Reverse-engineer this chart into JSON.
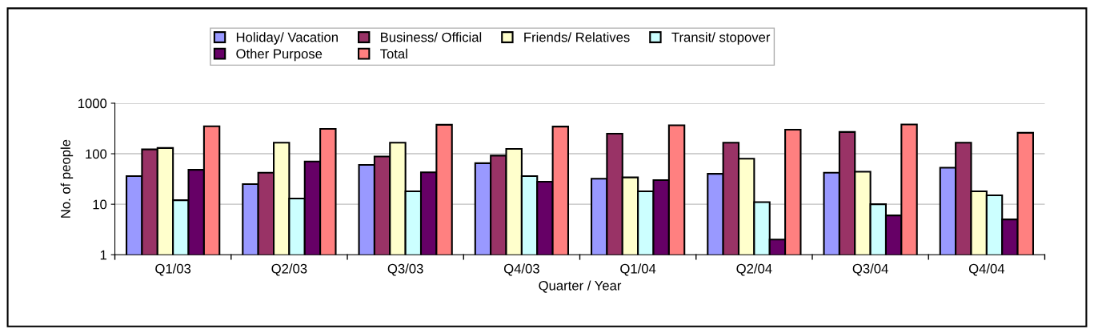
{
  "chart_data": {
    "type": "bar",
    "xlabel": "Quarter / Year",
    "ylabel": "No. of people",
    "log": true,
    "ylim": [
      1,
      1000
    ],
    "yticks": [
      1,
      10,
      100,
      1000
    ],
    "grid": "y",
    "legend": "top",
    "categories": [
      "Q1/03",
      "Q2/03",
      "Q3/03",
      "Q4/03",
      "Q1/04",
      "Q2/04",
      "Q3/04",
      "Q4/04"
    ],
    "series": [
      {
        "name": "Holiday/ Vacation",
        "color": "#9999ff",
        "values": [
          36,
          25,
          60,
          65,
          32,
          40,
          42,
          53
        ]
      },
      {
        "name": "Business/ Official",
        "color": "#993366",
        "values": [
          122,
          42,
          88,
          92,
          250,
          165,
          270,
          165
        ]
      },
      {
        "name": "Friends/ Relatives",
        "color": "#ffffcc",
        "values": [
          130,
          165,
          165,
          125,
          34,
          80,
          44,
          18
        ]
      },
      {
        "name": "Transit/ stopover",
        "color": "#ccffff",
        "values": [
          12,
          13,
          18,
          36,
          18,
          11,
          10,
          15
        ]
      },
      {
        "name": "Other Purpose",
        "color": "#660066",
        "values": [
          48,
          70,
          43,
          28,
          30,
          2,
          6,
          5
        ]
      },
      {
        "name": "Total",
        "color": "#ff8080",
        "values": [
          350,
          310,
          375,
          345,
          365,
          300,
          380,
          260
        ]
      }
    ]
  }
}
